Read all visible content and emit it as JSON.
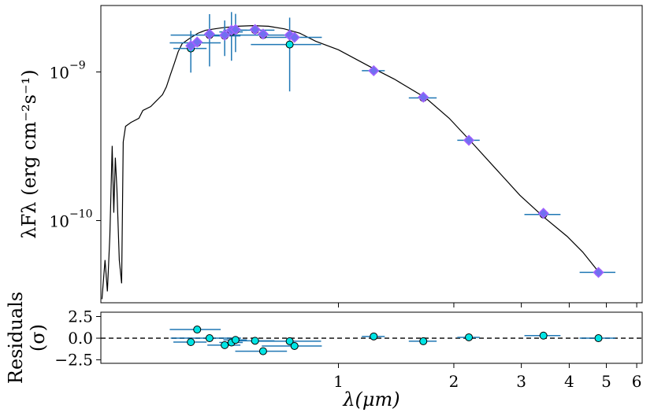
{
  "chart_data": [
    {
      "type": "line",
      "xscale": "log",
      "yscale": "log",
      "ylabel": "λFλ (erg cm⁻²s⁻¹)",
      "xlim": [
        0.24,
        6.2
      ],
      "xticks": [
        1,
        2,
        3,
        4,
        5,
        6
      ],
      "ylim": [
        2.8e-11,
        2.8e-09
      ],
      "yticks": [
        {
          "value": 1e-09,
          "label": "10",
          "exponent": "−9"
        },
        {
          "value": 1e-10,
          "label": "10",
          "exponent": "−10"
        }
      ],
      "series": [
        {
          "type": "line",
          "color": "#000000",
          "x": [
            0.2416,
            0.2461,
            0.2496,
            0.2533,
            0.2569,
            0.2594,
            0.2618,
            0.2643,
            0.2681,
            0.2719,
            0.2745,
            0.2784,
            0.2877,
            0.3016,
            0.3089,
            0.3238,
            0.3394,
            0.3475,
            0.3557,
            0.3642,
            0.373,
            0.3819,
            0.3911,
            0.41,
            0.4297,
            0.4504,
            0.495,
            0.5441,
            0.5978,
            0.6571,
            0.7222,
            0.7937,
            0.8721,
            1,
            1.213,
            1.398,
            1.689,
            1.945,
            2.241,
            2.582,
            2.974,
            3.426,
            3.948,
            4.338,
            4.768
          ],
          "values": [
            2.96e-11,
            5.43e-11,
            3.34e-11,
            7.84e-11,
            3.18e-10,
            1.13e-10,
            2.65e-10,
            1.63e-10,
            5.43e-11,
            3.78e-11,
            3.38e-10,
            4.31e-10,
            4.58e-10,
            4.88e-10,
            5.51e-10,
            5.85e-10,
            6.61e-10,
            7.03e-10,
            7.93e-10,
            9.53e-10,
            1.14e-09,
            1.37e-09,
            1.55e-09,
            1.69e-09,
            1.82e-09,
            1.91e-09,
            1.98e-09,
            2.03e-09,
            2.05e-09,
            2.03e-09,
            1.95e-09,
            1.82e-09,
            1.61e-09,
            1.41e-09,
            1.08e-09,
            8.96e-10,
            6.69e-10,
            4.88e-10,
            3.3e-10,
            2.21e-10,
            1.48e-10,
            1.06e-10,
            7.84e-11,
            6.14e-11,
            4.53e-11
          ]
        },
        {
          "type": "errorbar",
          "color": "#00e5e5",
          "ecolor": "#1f77b4",
          "x": [
            0.412,
            0.428,
            0.461,
            0.505,
            0.526,
            0.539,
            0.606,
            0.636,
            0.746,
            0.768,
            1.236,
            1.665,
            2.189,
            3.426,
            4.768
          ],
          "xerr": [
            0.041,
            0.065,
            0.096,
            0.05,
            0.037,
            0.038,
            0.075,
            0.098,
            0.155,
            0.137,
            0.085,
            0.139,
            0.147,
            0.37,
            0.51
          ],
          "values": [
            1.44e-09,
            1.57e-09,
            1.77e-09,
            1.75e-09,
            1.86e-09,
            1.91e-09,
            1.91e-09,
            1.77e-09,
            1.53e-09,
            1.71e-09,
            1.02e-09,
            6.69e-10,
            3.47e-10,
            1.1e-10,
            4.48e-11
          ],
          "yerr": [
            4.5e-10,
            1e-10,
            6.8e-10,
            4.7e-10,
            6.7e-10,
            5.5e-10,
            8e-11,
            1e-10,
            7.9e-10,
            1e-10,
            3e-11,
            2e-11,
            1e-11,
            3e-12,
            1e-12
          ]
        },
        {
          "type": "scatter",
          "marker": "diamond",
          "color": "#7070f0",
          "edgecolor": "#a060ff",
          "x": [
            0.412,
            0.428,
            0.461,
            0.505,
            0.526,
            0.539,
            0.606,
            0.636,
            0.746,
            0.768,
            1.236,
            1.665,
            2.189,
            3.426,
            4.768
          ],
          "values": [
            1.5e-09,
            1.59e-09,
            1.8e-09,
            1.77e-09,
            1.91e-09,
            1.93e-09,
            1.93e-09,
            1.8e-09,
            1.77e-09,
            1.71e-09,
            1.02e-09,
            6.77e-10,
            3.47e-10,
            1.12e-10,
            4.48e-11
          ]
        }
      ]
    },
    {
      "type": "scatter",
      "xscale": "log",
      "xlabel": "λ(μm)",
      "ylabel": [
        "Residuals",
        "(σ)"
      ],
      "xlim": [
        0.24,
        6.2
      ],
      "xticks": [
        1,
        2,
        3,
        4,
        5,
        6
      ],
      "ylim": [
        -2.9,
        3.0
      ],
      "yticks": [
        2.5,
        {
          "value": 0,
          "label": "0.0"
        },
        {
          "value": -2.5,
          "label": "−2.5"
        }
      ],
      "hline": 0,
      "series": [
        {
          "type": "errorbar",
          "color": "#00e5e5",
          "ecolor": "#1f77b4",
          "x": [
            0.412,
            0.428,
            0.461,
            0.505,
            0.526,
            0.539,
            0.606,
            0.636,
            0.746,
            0.768,
            1.236,
            1.665,
            2.189,
            3.426,
            4.768
          ],
          "xerr": [
            0.041,
            0.065,
            0.096,
            0.05,
            0.037,
            0.038,
            0.075,
            0.098,
            0.155,
            0.137,
            0.085,
            0.139,
            0.147,
            0.37,
            0.51
          ],
          "values": [
            -0.45,
            1.0,
            0.0,
            -0.8,
            -0.5,
            -0.2,
            -0.3,
            -1.5,
            -0.35,
            -0.9,
            0.2,
            -0.35,
            0.1,
            0.3,
            0.0
          ]
        }
      ]
    }
  ]
}
